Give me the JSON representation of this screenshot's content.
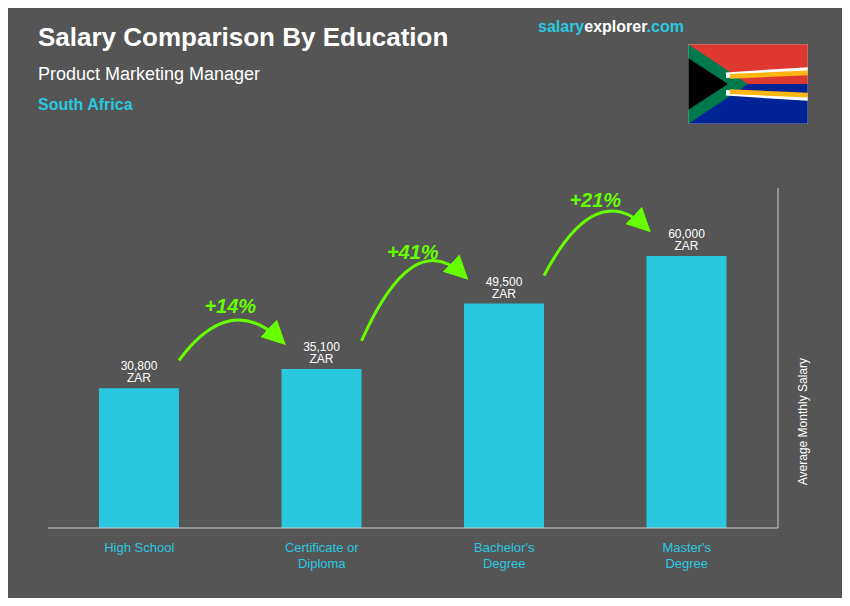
{
  "chart_data": {
    "type": "bar",
    "title": "Salary Comparison By Education",
    "subtitle": "Product Marketing Manager",
    "ylabel": "Average Monthly Salary",
    "categories": [
      "High School",
      "Certificate or\nDiploma",
      "Bachelor's\nDegree",
      "Master's\nDegree"
    ],
    "values": [
      30800,
      35100,
      49500,
      60000
    ],
    "value_labels": [
      "30,800 ZAR",
      "35,100 ZAR",
      "49,500 ZAR",
      "60,000 ZAR"
    ],
    "data_labels": true,
    "color": "#29C8E0",
    "ylim": [
      0,
      75000
    ],
    "tick_labels": "x",
    "grid": false,
    "change_labels": [
      "+14%",
      "+41%",
      "+21%"
    ],
    "change_color": "#66FF00",
    "annotations": [
      {
        "parts": [
          {
            "text": "South Africa",
            "color": "#29C8E0"
          }
        ]
      },
      {
        "parts": [
          {
            "text": "salary",
            "color": "#29C8E0"
          },
          {
            "text": "explorer",
            "color": "#FFFFFF"
          },
          {
            "text": ".com",
            "color": "#29C8E0"
          }
        ]
      }
    ]
  }
}
